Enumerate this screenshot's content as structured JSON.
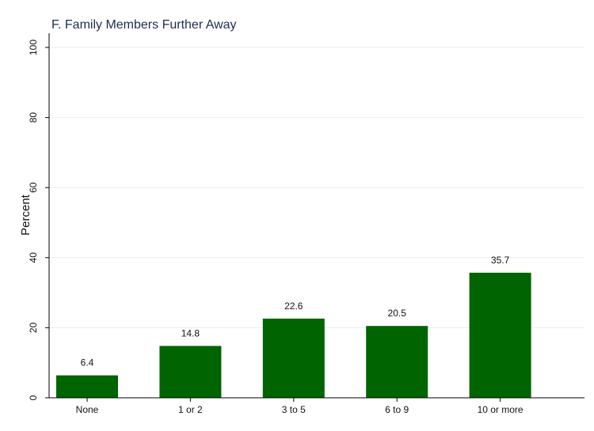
{
  "chart_data": {
    "type": "bar",
    "title": "F. Family Members Further Away",
    "xlabel": "",
    "ylabel": "Percent",
    "categories": [
      "None",
      "1 or 2",
      "3 to 5",
      "6 to 9",
      "10 or more"
    ],
    "values": [
      6.4,
      14.8,
      22.6,
      20.5,
      35.7
    ],
    "data_labels": [
      "6.4",
      "14.8",
      "22.6",
      "20.5",
      "35.7"
    ],
    "ylim": [
      0,
      100
    ],
    "yticks": [
      0,
      20,
      40,
      60,
      80,
      100
    ],
    "ytick_labels": [
      "0",
      "20",
      "40",
      "60",
      "80",
      "100"
    ],
    "grid": true,
    "legend": "none",
    "colors": {
      "bar": "#006400",
      "grid": "#e9eef1",
      "axis": "#000000"
    }
  }
}
